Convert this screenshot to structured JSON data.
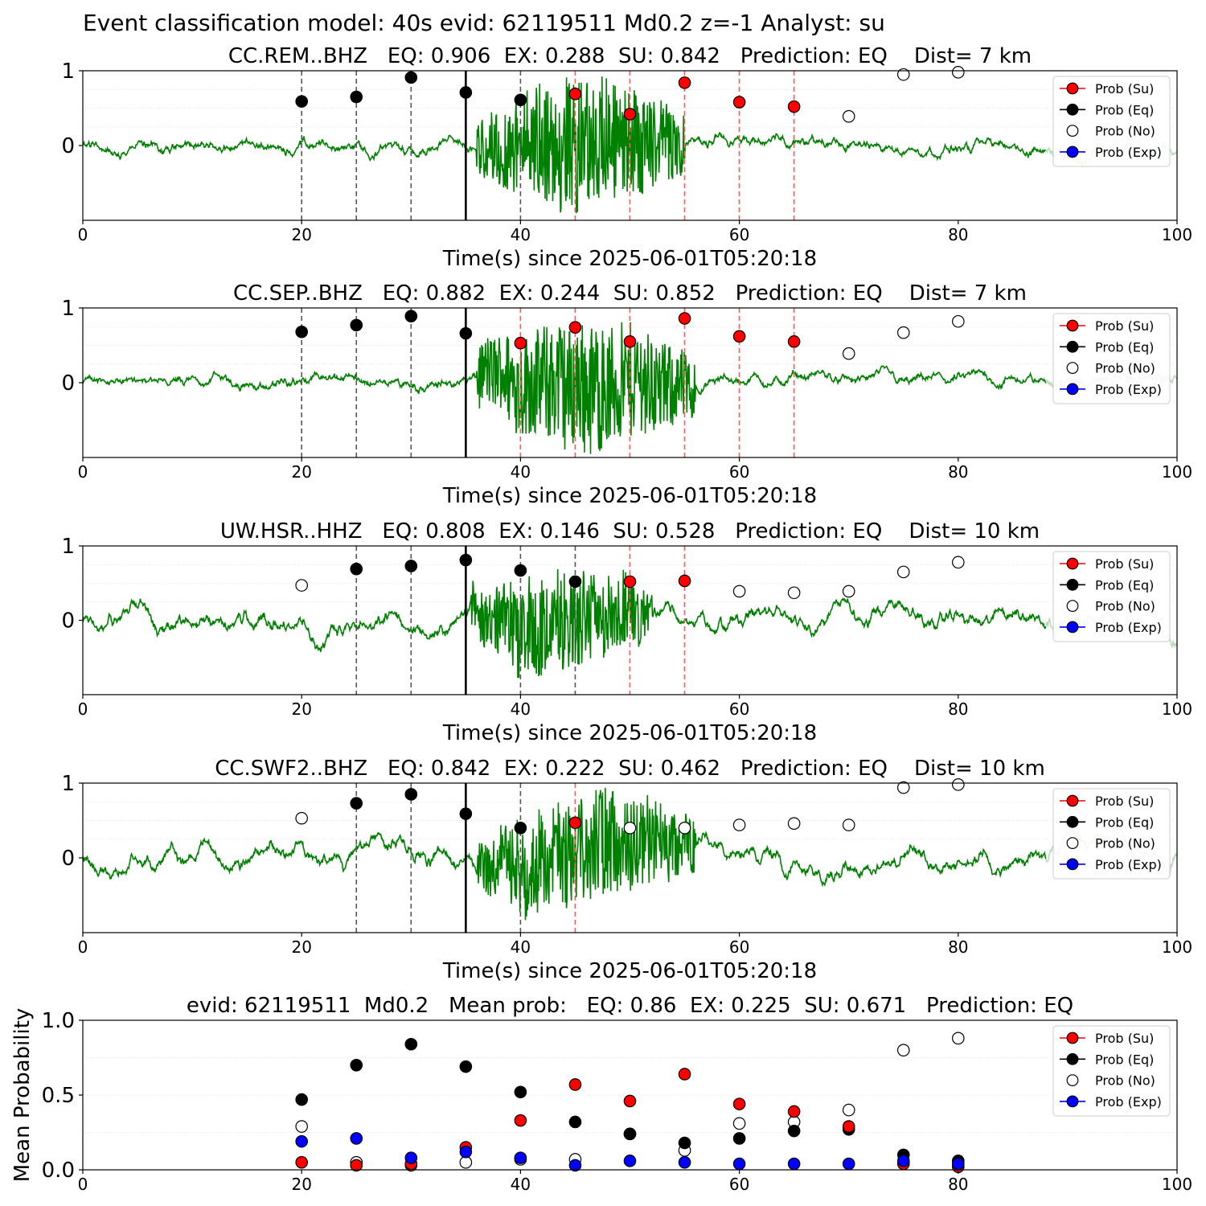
{
  "suptitle": "Event classification model: 40s evid: 62119511 Md0.2 z=-1 Analyst: su",
  "colors": {
    "su": "#ff0000",
    "eq": "#000000",
    "no": "#ffffff",
    "exp": "#0000ff",
    "waveform": "#008000",
    "waveform_tail": "#b8dab8",
    "eq_window_line": "#555555",
    "su_window_line": "#ff5a5a",
    "pick_line": "#000000"
  },
  "legend": {
    "placement": "upper right",
    "entries": [
      "Prob (Su)",
      "Prob (Eq)",
      "Prob (No)",
      "Prob (Exp)"
    ]
  },
  "chart_data": [
    {
      "type": "scatter",
      "title": "CC.REM..BHZ   EQ: 0.906  EX: 0.288  SU: 0.842   Prediction: EQ    Dist= 7 km",
      "xlabel": "Time(s) since 2025-06-01T05:20:18",
      "ylabel": "",
      "xlim": [
        0,
        100
      ],
      "ylim": [
        -1,
        1
      ],
      "xticks": [
        "0",
        "20",
        "40",
        "60",
        "80",
        "100"
      ],
      "yticks": [
        "0",
        "1"
      ],
      "pick_time": 35,
      "eq_window_lines": [
        20,
        25,
        30,
        40
      ],
      "su_window_lines": [
        45,
        50,
        55,
        60,
        65
      ],
      "waveform": {
        "amplitude": "noise 0.06, signal up to 1.0 between 36 and 55 s"
      },
      "series": [
        {
          "name": "Prob (Su)",
          "x": [
            45,
            50,
            55,
            60,
            65
          ],
          "y": [
            0.69,
            0.42,
            0.84,
            0.58,
            0.52
          ]
        },
        {
          "name": "Prob (Eq)",
          "x": [
            20,
            25,
            30,
            35,
            40
          ],
          "y": [
            0.59,
            0.65,
            0.91,
            0.71,
            0.61
          ]
        },
        {
          "name": "Prob (No)",
          "x": [
            70,
            75,
            80
          ],
          "y": [
            0.39,
            0.95,
            0.98
          ]
        },
        {
          "name": "Prob (Exp)",
          "x": [],
          "y": []
        }
      ]
    },
    {
      "type": "scatter",
      "title": "CC.SEP..BHZ   EQ: 0.882  EX: 0.244  SU: 0.852   Prediction: EQ    Dist= 7 km",
      "xlabel": "Time(s) since 2025-06-01T05:20:18",
      "ylabel": "",
      "xlim": [
        0,
        100
      ],
      "ylim": [
        -1,
        1
      ],
      "xticks": [
        "0",
        "20",
        "40",
        "60",
        "80",
        "100"
      ],
      "yticks": [
        "0",
        "1"
      ],
      "pick_time": 35,
      "eq_window_lines": [
        20,
        25,
        30
      ],
      "su_window_lines": [
        40,
        45,
        50,
        55,
        60,
        65
      ],
      "series": [
        {
          "name": "Prob (Su)",
          "x": [
            40,
            45,
            50,
            55,
            60,
            65
          ],
          "y": [
            0.53,
            0.74,
            0.55,
            0.86,
            0.62,
            0.55
          ]
        },
        {
          "name": "Prob (Eq)",
          "x": [
            20,
            25,
            30,
            35
          ],
          "y": [
            0.68,
            0.77,
            0.89,
            0.66
          ]
        },
        {
          "name": "Prob (No)",
          "x": [
            70,
            75,
            80
          ],
          "y": [
            0.39,
            0.67,
            0.82
          ]
        },
        {
          "name": "Prob (Exp)",
          "x": [],
          "y": []
        }
      ]
    },
    {
      "type": "scatter",
      "title": "UW.HSR..HHZ   EQ: 0.808  EX: 0.146  SU: 0.528   Prediction: EQ    Dist= 10 km",
      "xlabel": "Time(s) since 2025-06-01T05:20:18",
      "ylabel": "",
      "xlim": [
        0,
        100
      ],
      "ylim": [
        -1,
        1
      ],
      "xticks": [
        "0",
        "20",
        "40",
        "60",
        "80",
        "100"
      ],
      "yticks": [
        "0",
        "1"
      ],
      "pick_time": 35,
      "eq_window_lines": [
        25,
        30,
        40,
        45
      ],
      "su_window_lines": [
        50,
        55
      ],
      "series": [
        {
          "name": "Prob (Su)",
          "x": [
            50,
            55
          ],
          "y": [
            0.52,
            0.53
          ]
        },
        {
          "name": "Prob (Eq)",
          "x": [
            25,
            30,
            35,
            40,
            45
          ],
          "y": [
            0.69,
            0.73,
            0.81,
            0.67,
            0.52
          ]
        },
        {
          "name": "Prob (No)",
          "x": [
            20,
            60,
            65,
            70,
            75,
            80
          ],
          "y": [
            0.47,
            0.39,
            0.37,
            0.39,
            0.65,
            0.78
          ]
        },
        {
          "name": "Prob (Exp)",
          "x": [],
          "y": []
        }
      ]
    },
    {
      "type": "scatter",
      "title": "CC.SWF2..BHZ   EQ: 0.842  EX: 0.222  SU: 0.462   Prediction: EQ    Dist= 10 km",
      "xlabel": "Time(s) since 2025-06-01T05:20:18",
      "ylabel": "",
      "xlim": [
        0,
        100
      ],
      "ylim": [
        -1,
        1
      ],
      "xticks": [
        "0",
        "20",
        "40",
        "60",
        "80",
        "100"
      ],
      "yticks": [
        "0",
        "1"
      ],
      "pick_time": 35,
      "eq_window_lines": [
        25,
        30,
        40
      ],
      "su_window_lines": [
        45
      ],
      "series": [
        {
          "name": "Prob (Su)",
          "x": [
            45
          ],
          "y": [
            0.47
          ]
        },
        {
          "name": "Prob (Eq)",
          "x": [
            25,
            30,
            35,
            40
          ],
          "y": [
            0.73,
            0.85,
            0.59,
            0.4
          ]
        },
        {
          "name": "Prob (No)",
          "x": [
            20,
            50,
            55,
            60,
            65,
            70,
            75,
            80
          ],
          "y": [
            0.53,
            0.4,
            0.4,
            0.44,
            0.46,
            0.44,
            0.94,
            0.98
          ]
        },
        {
          "name": "Prob (Exp)",
          "x": [],
          "y": []
        }
      ]
    },
    {
      "type": "scatter",
      "title": "evid: 62119511  Md0.2   Mean prob:   EQ: 0.86  EX: 0.225  SU: 0.671   Prediction: EQ",
      "xlabel": "",
      "ylabel": "Mean Probability",
      "xlim": [
        0,
        100
      ],
      "ylim": [
        0,
        1
      ],
      "xticks": [
        "0",
        "20",
        "40",
        "60",
        "80",
        "100"
      ],
      "yticks": [
        "0.0",
        "0.5",
        "1.0"
      ],
      "series": [
        {
          "name": "Prob (Su)",
          "x": [
            20,
            25,
            30,
            35,
            40,
            45,
            50,
            55,
            60,
            65,
            70,
            75,
            80
          ],
          "y": [
            0.05,
            0.03,
            0.04,
            0.15,
            0.33,
            0.57,
            0.46,
            0.64,
            0.44,
            0.39,
            0.29,
            0.04,
            0.02
          ]
        },
        {
          "name": "Prob (Eq)",
          "x": [
            20,
            25,
            30,
            35,
            40,
            45,
            50,
            55,
            60,
            65,
            70,
            75,
            80
          ],
          "y": [
            0.47,
            0.7,
            0.84,
            0.69,
            0.52,
            0.32,
            0.24,
            0.18,
            0.21,
            0.26,
            0.27,
            0.1,
            0.06
          ]
        },
        {
          "name": "Prob (No)",
          "x": [
            20,
            25,
            30,
            35,
            40,
            45,
            50,
            55,
            60,
            65,
            70,
            75,
            80
          ],
          "y": [
            0.29,
            0.05,
            0.03,
            0.05,
            0.07,
            0.07,
            0.24,
            0.13,
            0.31,
            0.32,
            0.4,
            0.8,
            0.88
          ]
        },
        {
          "name": "Prob (Exp)",
          "x": [
            20,
            25,
            30,
            35,
            40,
            45,
            50,
            55,
            60,
            65,
            70,
            75,
            80
          ],
          "y": [
            0.19,
            0.21,
            0.08,
            0.12,
            0.08,
            0.03,
            0.06,
            0.05,
            0.04,
            0.04,
            0.04,
            0.06,
            0.04
          ]
        }
      ]
    }
  ]
}
